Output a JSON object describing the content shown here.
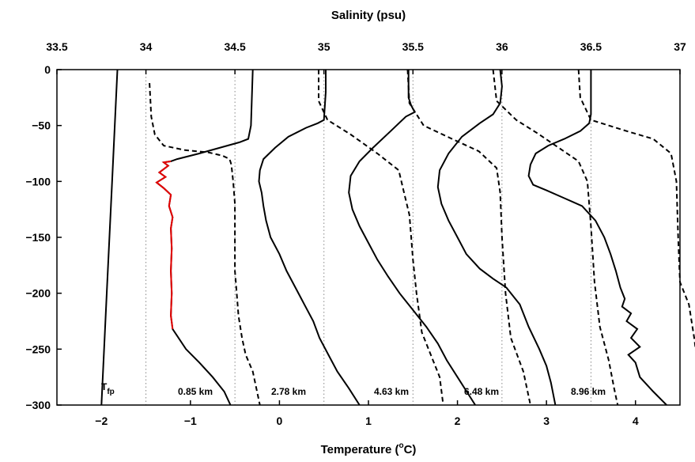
{
  "chart_data": {
    "type": "line",
    "title": "",
    "top_axis": {
      "label": "Salinity (psu)",
      "range": [
        33.5,
        37
      ],
      "ticks": [
        33.5,
        34,
        34.5,
        35,
        35.5,
        36,
        36.5,
        37
      ],
      "tick_labels": [
        "33.5",
        "34",
        "34.5",
        "35",
        "35.5",
        "36",
        "36.5",
        "37"
      ]
    },
    "bottom_axis": {
      "label": "Temperature (",
      "label_sup": "o",
      "label_unit": "C)",
      "range": [
        -2.5,
        4.5
      ],
      "ticks": [
        -2,
        -1,
        0,
        1,
        2,
        3,
        4
      ],
      "tick_labels": [
        "−2",
        "−1",
        "0",
        "1",
        "2",
        "3",
        "4"
      ]
    },
    "y_axis": {
      "label": "",
      "range": [
        -300,
        0
      ],
      "ticks": [
        0,
        -50,
        -100,
        -150,
        -200,
        -250,
        -300
      ],
      "tick_labels": [
        "0",
        "−50",
        "−100",
        "−150",
        "−200",
        "−250",
        "−300"
      ]
    },
    "reference_lines_salinity": [
      34,
      34.5,
      35,
      35.5,
      36,
      36.5
    ],
    "freezing_point": {
      "label_main": "T",
      "label_sub": "fp",
      "points": [
        [
          -1.82,
          0
        ],
        [
          -1.88,
          -100
        ],
        [
          -1.94,
          -200
        ],
        [
          -2.0,
          -300
        ]
      ]
    },
    "profiles": [
      {
        "label": "0.85 km",
        "temperature_offset_C": 0,
        "salinity_offset_psu": 0,
        "temperature": [
          [
            -0.3,
            0
          ],
          [
            -0.32,
            -50
          ],
          [
            -0.35,
            -62
          ],
          [
            -0.45,
            -65
          ],
          [
            -0.9,
            -75
          ],
          [
            -1.15,
            -80
          ],
          [
            -1.22,
            -82
          ],
          [
            -1.3,
            -83
          ],
          [
            -1.25,
            -86
          ],
          [
            -1.35,
            -92
          ],
          [
            -1.28,
            -96
          ],
          [
            -1.38,
            -101
          ],
          [
            -1.3,
            -106
          ],
          [
            -1.22,
            -112
          ],
          [
            -1.24,
            -122
          ],
          [
            -1.2,
            -132
          ],
          [
            -1.22,
            -142
          ],
          [
            -1.21,
            -160
          ],
          [
            -1.22,
            -180
          ],
          [
            -1.21,
            -200
          ],
          [
            -1.22,
            -220
          ],
          [
            -1.2,
            -232
          ],
          [
            -1.15,
            -238
          ],
          [
            -1.05,
            -250
          ],
          [
            -0.9,
            -262
          ],
          [
            -0.75,
            -275
          ],
          [
            -0.62,
            -288
          ],
          [
            -0.55,
            -300
          ]
        ],
        "salinity": [
          [
            34.02,
            -12
          ],
          [
            34.03,
            -42
          ],
          [
            34.05,
            -58
          ],
          [
            34.1,
            -68
          ],
          [
            34.22,
            -72
          ],
          [
            34.35,
            -74
          ],
          [
            34.43,
            -77
          ],
          [
            34.47,
            -80
          ],
          [
            34.48,
            -85
          ],
          [
            34.49,
            -100
          ],
          [
            34.5,
            -120
          ],
          [
            34.5,
            -140
          ],
          [
            34.5,
            -160
          ],
          [
            34.5,
            -180
          ],
          [
            34.51,
            -200
          ],
          [
            34.52,
            -220
          ],
          [
            34.54,
            -240
          ],
          [
            34.56,
            -255
          ],
          [
            34.6,
            -270
          ],
          [
            34.62,
            -285
          ],
          [
            34.64,
            -300
          ]
        ]
      },
      {
        "label": "2.78 km",
        "temperature_offset_C": 1,
        "salinity_offset_psu": 0.5,
        "temperature": [
          [
            -0.48,
            0
          ],
          [
            -0.48,
            -20
          ],
          [
            -0.5,
            -45
          ],
          [
            -0.57,
            -48
          ],
          [
            -0.7,
            -52
          ],
          [
            -0.9,
            -60
          ],
          [
            -1.05,
            -70
          ],
          [
            -1.18,
            -80
          ],
          [
            -1.22,
            -90
          ],
          [
            -1.23,
            -100
          ],
          [
            -1.2,
            -110
          ],
          [
            -1.18,
            -122
          ],
          [
            -1.15,
            -135
          ],
          [
            -1.1,
            -150
          ],
          [
            -1.0,
            -165
          ],
          [
            -0.92,
            -180
          ],
          [
            -0.82,
            -195
          ],
          [
            -0.72,
            -210
          ],
          [
            -0.62,
            -225
          ],
          [
            -0.55,
            -240
          ],
          [
            -0.45,
            -255
          ],
          [
            -0.35,
            -270
          ],
          [
            -0.22,
            -285
          ],
          [
            -0.1,
            -300
          ]
        ]
      },
      {
        "label": "4.63 km",
        "temperature_offset_C": 2,
        "salinity_offset_psu": 1,
        "temperature": [
          [
            -0.55,
            0
          ],
          [
            -0.55,
            -25
          ],
          [
            -0.52,
            -32
          ],
          [
            -0.48,
            -38
          ],
          [
            -0.58,
            -42
          ],
          [
            -0.75,
            -55
          ],
          [
            -0.95,
            -70
          ],
          [
            -1.1,
            -82
          ],
          [
            -1.2,
            -95
          ],
          [
            -1.22,
            -110
          ],
          [
            -1.18,
            -125
          ],
          [
            -1.1,
            -140
          ],
          [
            -1.0,
            -155
          ],
          [
            -0.9,
            -170
          ],
          [
            -0.78,
            -185
          ],
          [
            -0.65,
            -200
          ],
          [
            -0.5,
            -215
          ],
          [
            -0.35,
            -230
          ],
          [
            -0.22,
            -245
          ],
          [
            -0.12,
            -260
          ],
          [
            0.0,
            -275
          ],
          [
            0.12,
            -290
          ],
          [
            0.2,
            -300
          ]
        ]
      },
      {
        "label": "6.48 km",
        "temperature_offset_C": 3,
        "salinity_offset_psu": 1.5,
        "temperature": [
          [
            -0.52,
            0
          ],
          [
            -0.5,
            -15
          ],
          [
            -0.52,
            -30
          ],
          [
            -0.6,
            -40
          ],
          [
            -0.75,
            -48
          ],
          [
            -0.95,
            -60
          ],
          [
            -1.1,
            -75
          ],
          [
            -1.2,
            -90
          ],
          [
            -1.22,
            -105
          ],
          [
            -1.18,
            -120
          ],
          [
            -1.1,
            -135
          ],
          [
            -1.0,
            -150
          ],
          [
            -0.9,
            -165
          ],
          [
            -0.75,
            -178
          ],
          [
            -0.6,
            -187
          ],
          [
            -0.45,
            -195
          ],
          [
            -0.3,
            -210
          ],
          [
            -0.2,
            -230
          ],
          [
            -0.08,
            -250
          ],
          [
            0.0,
            -265
          ],
          [
            0.05,
            -280
          ],
          [
            0.1,
            -300
          ]
        ]
      },
      {
        "label": "8.96 km",
        "temperature_offset_C": 4,
        "salinity_offset_psu": 2,
        "temperature": [
          [
            -0.5,
            0
          ],
          [
            -0.5,
            -20
          ],
          [
            -0.5,
            -40
          ],
          [
            -0.52,
            -48
          ],
          [
            -0.62,
            -55
          ],
          [
            -0.8,
            -62
          ],
          [
            -0.98,
            -68
          ],
          [
            -1.12,
            -75
          ],
          [
            -1.18,
            -85
          ],
          [
            -1.2,
            -95
          ],
          [
            -1.15,
            -103
          ],
          [
            -1.0,
            -108
          ],
          [
            -0.8,
            -115
          ],
          [
            -0.6,
            -122
          ],
          [
            -0.45,
            -135
          ],
          [
            -0.35,
            -150
          ],
          [
            -0.28,
            -165
          ],
          [
            -0.22,
            -180
          ],
          [
            -0.17,
            -195
          ],
          [
            -0.12,
            -205
          ],
          [
            -0.15,
            -212
          ],
          [
            -0.05,
            -218
          ],
          [
            -0.1,
            -225
          ],
          [
            0.02,
            -232
          ],
          [
            -0.05,
            -240
          ],
          [
            0.05,
            -248
          ],
          [
            -0.08,
            -255
          ],
          [
            0.0,
            -262
          ],
          [
            0.05,
            -275
          ],
          [
            0.2,
            -288
          ],
          [
            0.35,
            -300
          ]
        ]
      }
    ],
    "salinity_profiles": [
      [
        [
          34.97,
          0
        ],
        [
          34.97,
          -28
        ],
        [
          35.02,
          -45
        ],
        [
          35.15,
          -58
        ],
        [
          35.3,
          -75
        ],
        [
          35.42,
          -90
        ],
        [
          35.45,
          -110
        ],
        [
          35.48,
          -130
        ],
        [
          35.5,
          -170
        ],
        [
          35.52,
          -200
        ],
        [
          35.55,
          -235
        ],
        [
          35.6,
          -255
        ],
        [
          35.65,
          -275
        ],
        [
          35.67,
          -300
        ]
      ],
      [
        [
          35.47,
          0
        ],
        [
          35.48,
          -30
        ],
        [
          35.56,
          -50
        ],
        [
          35.72,
          -62
        ],
        [
          35.87,
          -73
        ],
        [
          35.97,
          -88
        ],
        [
          35.99,
          -110
        ],
        [
          36.0,
          -150
        ],
        [
          36.02,
          -200
        ],
        [
          36.05,
          -240
        ],
        [
          36.12,
          -270
        ],
        [
          36.16,
          -300
        ]
      ],
      [
        [
          35.95,
          0
        ],
        [
          35.97,
          -28
        ],
        [
          36.08,
          -45
        ],
        [
          36.2,
          -57
        ],
        [
          36.32,
          -70
        ],
        [
          36.43,
          -82
        ],
        [
          36.48,
          -100
        ],
        [
          36.5,
          -140
        ],
        [
          36.52,
          -190
        ],
        [
          36.55,
          -230
        ],
        [
          36.6,
          -260
        ],
        [
          36.63,
          -285
        ],
        [
          36.65,
          -300
        ]
      ],
      [
        [
          36.43,
          0
        ],
        [
          36.44,
          -25
        ],
        [
          36.5,
          -45
        ],
        [
          36.7,
          -55
        ],
        [
          36.85,
          -62
        ],
        [
          36.95,
          -75
        ],
        [
          36.98,
          -100
        ],
        [
          36.99,
          -150
        ],
        [
          37.0,
          -190
        ],
        [
          37.05,
          -210
        ],
        [
          37.08,
          -240
        ],
        [
          37.1,
          -265
        ],
        [
          37.12,
          -290
        ],
        [
          37.14,
          -300
        ]
      ]
    ],
    "series_styles": {
      "temperature": "solid",
      "salinity": "dashed",
      "highlight_color": "#e60000",
      "highlight_range_m": [
        -82,
        -232
      ]
    },
    "grid": false
  }
}
